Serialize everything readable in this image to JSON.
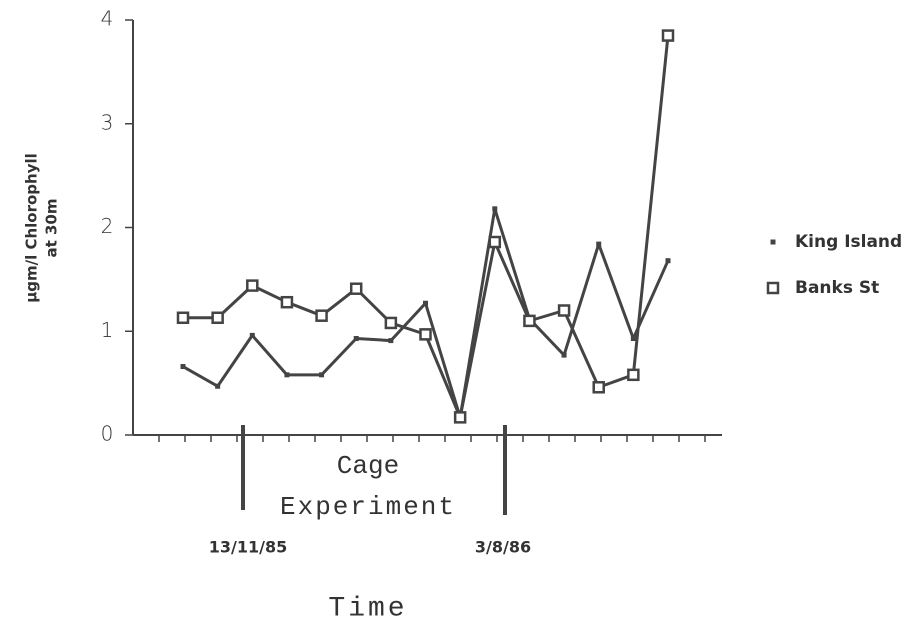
{
  "chart_data": {
    "type": "line",
    "ylabel": [
      "µgm/l Chlorophyll",
      "at 30m"
    ],
    "xlabel": "Time",
    "categories": [
      null,
      null,
      null,
      null,
      null,
      null,
      null,
      null,
      null,
      null,
      null,
      null,
      null,
      null,
      null
    ],
    "series": [
      {
        "name": "King Island",
        "color": "#444444",
        "marker": "dot",
        "values": [
          0.66,
          0.47,
          0.96,
          0.58,
          0.58,
          0.93,
          0.91,
          1.27,
          0.17,
          2.18,
          1.12,
          0.77,
          1.84,
          0.93,
          1.68
        ]
      },
      {
        "name": "Banks St",
        "color": "#444444",
        "marker": "open-square",
        "values": [
          1.13,
          1.13,
          1.44,
          1.28,
          1.15,
          1.41,
          1.08,
          0.97,
          0.17,
          1.86,
          1.1,
          1.2,
          0.46,
          0.58,
          3.85
        ]
      }
    ],
    "ylim": [
      0,
      4
    ],
    "yticks": [
      0,
      1,
      2,
      3,
      4
    ],
    "annotations": [
      "Cage",
      "Experiment",
      "13/11/85",
      "3/8/86"
    ]
  }
}
